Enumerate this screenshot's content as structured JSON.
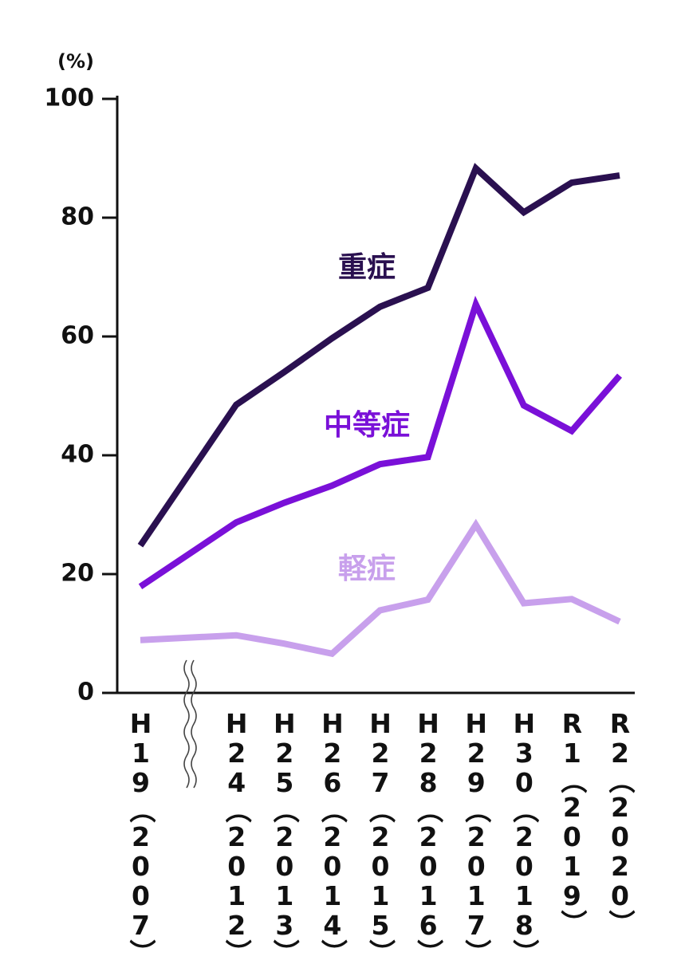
{
  "chart_data": {
    "type": "line",
    "unit": "(%)",
    "categories": [
      "H19（2007）",
      "H24（2012）",
      "H25（2013）",
      "H26（2014）",
      "H27（2015）",
      "H28（2016）",
      "H29（2017）",
      "H30（2018）",
      "R1（2019）",
      "R2（2020）"
    ],
    "series": [
      {
        "name": "重症",
        "color": "#2a1050",
        "values": [
          24.8,
          48.5,
          54,
          59.7,
          65,
          68.2,
          88.3,
          80.9,
          85.9,
          87.1
        ]
      },
      {
        "name": "中等症",
        "color": "#7a10d8",
        "values": [
          17.9,
          28.7,
          32,
          34.9,
          38.5,
          39.7,
          65.4,
          48.4,
          44.1,
          53.4
        ]
      },
      {
        "name": "軽症",
        "color": "#c8a0ec",
        "values": [
          8.9,
          9.7,
          8.3,
          6.6,
          13.9,
          15.7,
          28.3,
          15.1,
          15.8,
          12
        ]
      }
    ],
    "ylim": [
      0,
      100
    ],
    "yticks": [
      0,
      20,
      40,
      60,
      80,
      100
    ],
    "grid": false
  }
}
